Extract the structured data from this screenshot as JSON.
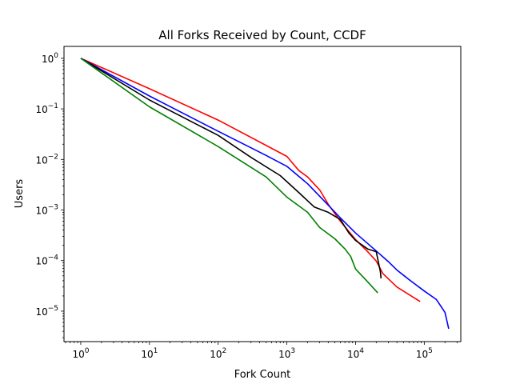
{
  "chart_data": {
    "type": "line",
    "title": "All Forks Received by Count, CCDF",
    "xlabel": "Fork Count",
    "ylabel": "Users",
    "xscale": "log",
    "yscale": "log",
    "xlim": [
      0.57,
      340000
    ],
    "ylim": [
      2.5e-06,
      1.72
    ],
    "x_ticks": [
      {
        "base": "10",
        "exp": "0"
      },
      {
        "base": "10",
        "exp": "1"
      },
      {
        "base": "10",
        "exp": "2"
      },
      {
        "base": "10",
        "exp": "3"
      },
      {
        "base": "10",
        "exp": "4"
      },
      {
        "base": "10",
        "exp": "5"
      }
    ],
    "y_ticks": [
      {
        "base": "10",
        "exp": "0"
      },
      {
        "base": "10",
        "exp": "−1"
      },
      {
        "base": "10",
        "exp": "−2"
      },
      {
        "base": "10",
        "exp": "−3"
      },
      {
        "base": "10",
        "exp": "−4"
      },
      {
        "base": "10",
        "exp": "−5"
      }
    ],
    "grid": false,
    "legend": false,
    "series": [
      {
        "color": "#ff0000",
        "points": [
          [
            1,
            1
          ],
          [
            10,
            0.25
          ],
          [
            100,
            0.06
          ],
          [
            1000,
            0.0115
          ],
          [
            1500,
            0.006
          ],
          [
            2000,
            0.0045
          ],
          [
            3000,
            0.0025
          ],
          [
            4000,
            0.0013
          ],
          [
            6000,
            0.0006
          ],
          [
            10000,
            0.00026
          ],
          [
            15000,
            0.00015
          ],
          [
            20000,
            9.8e-05
          ],
          [
            25000,
            5.5e-05
          ],
          [
            40000,
            3e-05
          ],
          [
            87000,
            1.55e-05
          ]
        ]
      },
      {
        "color": "#0000ff",
        "points": [
          [
            1,
            1
          ],
          [
            10,
            0.18
          ],
          [
            100,
            0.036
          ],
          [
            500,
            0.012
          ],
          [
            1000,
            0.0073
          ],
          [
            2000,
            0.0033
          ],
          [
            4000,
            0.00125
          ],
          [
            6000,
            0.0007
          ],
          [
            10000,
            0.00035
          ],
          [
            20000,
            0.000155
          ],
          [
            30000,
            9.5e-05
          ],
          [
            40000,
            6.5e-05
          ],
          [
            60000,
            4.2e-05
          ],
          [
            100000,
            2.5e-05
          ],
          [
            150000,
            1.7e-05
          ],
          [
            200000,
            9.5e-06
          ],
          [
            227000,
            4.5e-06
          ]
        ]
      },
      {
        "color": "#000000",
        "points": [
          [
            1,
            1
          ],
          [
            10,
            0.15
          ],
          [
            100,
            0.03
          ],
          [
            300,
            0.011
          ],
          [
            800,
            0.0048
          ],
          [
            1500,
            0.0022
          ],
          [
            2500,
            0.00115
          ],
          [
            4000,
            0.0009
          ],
          [
            6000,
            0.00065
          ],
          [
            8000,
            0.00035
          ],
          [
            10000,
            0.00025
          ],
          [
            15000,
            0.00017
          ],
          [
            20000,
            0.00015
          ],
          [
            23000,
            6e-05
          ],
          [
            23500,
            4.45e-05
          ]
        ]
      },
      {
        "color": "#008000",
        "points": [
          [
            1,
            1
          ],
          [
            10,
            0.11
          ],
          [
            100,
            0.018
          ],
          [
            500,
            0.0045
          ],
          [
            1000,
            0.0018
          ],
          [
            2000,
            0.0009
          ],
          [
            3000,
            0.00045
          ],
          [
            5000,
            0.00027
          ],
          [
            7000,
            0.00017
          ],
          [
            8500,
            0.00012
          ],
          [
            10000,
            6.8e-05
          ],
          [
            15000,
            3.8e-05
          ],
          [
            21000,
            2.3e-05
          ]
        ]
      }
    ]
  }
}
